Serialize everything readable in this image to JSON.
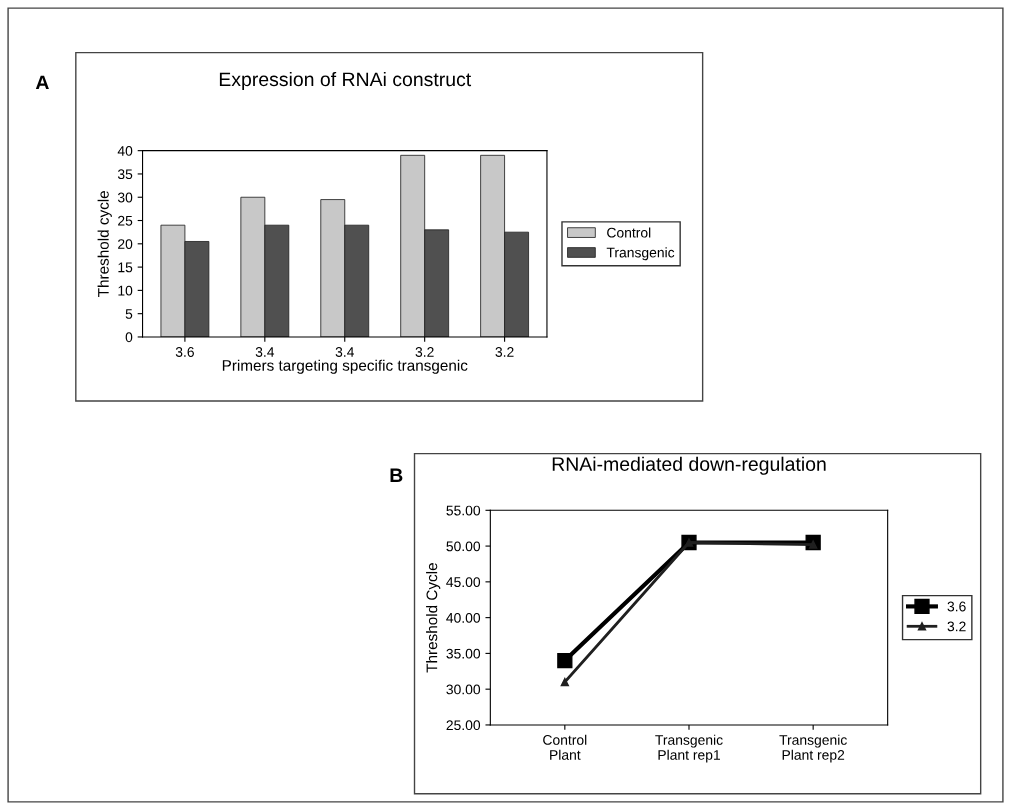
{
  "chart_data": [
    {
      "type": "bar",
      "title": "Expression of RNAi construct",
      "xlabel": "Primers targeting specific transgenic",
      "ylabel": "Threshold cycle",
      "categories": [
        "3.6",
        "3.4",
        "3.4",
        "3.2",
        "3.2"
      ],
      "series": [
        {
          "name": "Control",
          "color": "#c8c8c8",
          "values": [
            24,
            30,
            29.5,
            39,
            39
          ]
        },
        {
          "name": "Transgenic",
          "color": "#505050",
          "values": [
            20.5,
            24,
            24,
            23,
            22.5
          ]
        }
      ],
      "ylim": [
        0,
        40
      ],
      "yticks": [
        0,
        5,
        10,
        15,
        20,
        25,
        30,
        35,
        40
      ],
      "grid": false,
      "legend": "right",
      "annotations": [
        "A"
      ]
    },
    {
      "type": "line",
      "title": "RNAi-mediated down-regulation",
      "ylabel": "Threshold Cycle",
      "categories": [
        "Control\nPlant",
        "Transgenic\nPlant rep1",
        "Transgenic\nPlant rep2"
      ],
      "series": [
        {
          "name": "3.6",
          "color": "#000000",
          "values": [
            34,
            50.5,
            50.5
          ],
          "marker": "square"
        },
        {
          "name": "3.2",
          "color": "#202020",
          "values": [
            31,
            50.5,
            50.2
          ],
          "marker": "triangle"
        }
      ],
      "ylim": [
        25,
        55
      ],
      "yticks": [
        {
          "value": 25,
          "label": "25.00"
        },
        {
          "value": 30,
          "label": "30.00"
        },
        {
          "value": 35,
          "label": "35.00"
        },
        {
          "value": 40,
          "label": "40.00"
        },
        {
          "value": 45,
          "label": "45.00"
        },
        {
          "value": 50,
          "label": "50.00"
        },
        {
          "value": 55,
          "label": "55.00"
        }
      ],
      "grid": false,
      "legend": "right",
      "annotations": [
        "B"
      ]
    }
  ]
}
